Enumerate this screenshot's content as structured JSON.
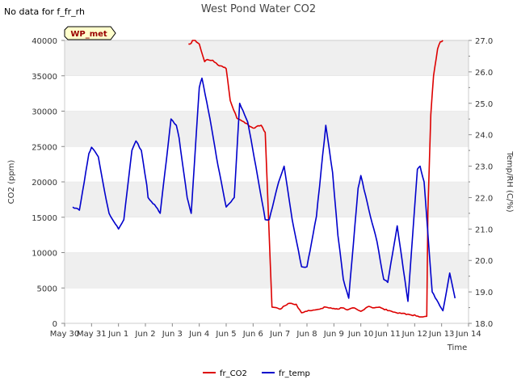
{
  "page": {
    "title": "West Pond Water CO2",
    "no_data_note": "No data for f_fr_rh",
    "site_badge": "WP_met"
  },
  "chart_data": {
    "type": "line",
    "title": "West Pond Water CO2",
    "xlabel": "Time",
    "ylabel": "CO2 (ppm)",
    "y2label": "Temp/RH (C/%)",
    "x_ticks": [
      "May 30",
      "May 31",
      "Jun 1",
      "Jun 2",
      "Jun 3",
      "Jun 4",
      "Jun 5",
      "Jun 6",
      "Jun 7",
      "Jun 8",
      "Jun 9",
      "Jun 10",
      "Jun 11",
      "Jun 12",
      "Jun 13",
      "Jun 14"
    ],
    "xlim_days": [
      0,
      15
    ],
    "ylim": [
      0,
      40000
    ],
    "y_ticks": [
      0,
      5000,
      10000,
      15000,
      20000,
      25000,
      30000,
      35000,
      40000
    ],
    "y2lim": [
      18.0,
      27.0
    ],
    "y2_ticks": [
      18.0,
      19.0,
      20.0,
      21.0,
      22.0,
      23.0,
      24.0,
      25.0,
      26.0,
      27.0
    ],
    "legend_position": "bottom-center",
    "grid": "horizontal bands",
    "colors": {
      "fr_CO2": "#dd0000",
      "fr_temp": "#0000cc",
      "band": "#efefef",
      "axis": "#cccccc",
      "badge_bg": "#ffffcc",
      "badge_text": "#990000"
    },
    "series": [
      {
        "name": "fr_CO2",
        "axis": "left",
        "x": [
          4.6,
          4.7,
          4.75,
          4.85,
          5.0,
          5.2,
          5.3,
          5.5,
          5.75,
          5.9,
          6.0,
          6.15,
          6.4,
          6.65,
          7.0,
          7.3,
          7.45,
          7.7,
          8.0,
          8.3,
          8.6,
          8.8,
          9.0,
          9.1,
          9.3,
          9.7,
          10.0,
          10.15,
          10.3,
          10.5,
          10.7,
          11.0,
          11.3,
          11.5,
          11.7,
          12.0,
          12.2,
          12.5,
          12.75,
          13.3,
          13.45,
          13.49,
          13.6,
          13.7,
          13.85,
          13.95,
          14.05
        ],
        "values": [
          39500,
          39600,
          40000,
          40100,
          39500,
          37000,
          37300,
          37200,
          36400,
          36200,
          36000,
          31500,
          29000,
          28500,
          27600,
          28000,
          27000,
          2300,
          2000,
          2800,
          2700,
          1500,
          1700,
          1800,
          1900,
          2300,
          2100,
          2000,
          2200,
          1900,
          2200,
          1700,
          2400,
          2200,
          2300,
          1800,
          1600,
          1400,
          1300,
          900,
          1000,
          15800,
          29500,
          35000,
          38800,
          39800,
          40000
        ]
      },
      {
        "name": "fr_temp",
        "axis": "right",
        "x": [
          0.3,
          0.55,
          0.9,
          1.0,
          1.25,
          1.55,
          1.65,
          2.0,
          2.2,
          2.5,
          2.65,
          2.85,
          3.05,
          3.1,
          3.4,
          3.55,
          3.95,
          4.15,
          4.25,
          4.55,
          4.7,
          5.0,
          5.1,
          5.4,
          5.7,
          6.0,
          6.3,
          6.5,
          6.8,
          7.1,
          7.45,
          7.6,
          7.95,
          8.15,
          8.45,
          8.8,
          9.0,
          9.35,
          9.7,
          9.95,
          10.15,
          10.35,
          10.55,
          10.9,
          11.0,
          11.3,
          11.6,
          11.85,
          12.0,
          12.35,
          12.75,
          13.1,
          13.2,
          13.35,
          13.65,
          14.05,
          14.3,
          14.5
        ],
        "values": [
          21.7,
          21.6,
          23.4,
          23.6,
          23.3,
          21.9,
          21.5,
          21.0,
          21.3,
          23.5,
          23.8,
          23.5,
          22.4,
          22.0,
          21.7,
          21.5,
          24.5,
          24.3,
          23.9,
          22.0,
          21.5,
          25.5,
          25.8,
          24.5,
          23.0,
          21.7,
          22.0,
          25.0,
          24.4,
          23.0,
          21.3,
          21.3,
          22.5,
          23.0,
          21.3,
          19.8,
          19.8,
          21.4,
          24.3,
          22.8,
          20.8,
          19.4,
          18.8,
          22.3,
          22.7,
          21.6,
          20.6,
          19.4,
          19.3,
          21.1,
          18.7,
          22.9,
          23.0,
          22.5,
          19.0,
          18.4,
          19.6,
          18.8
        ]
      }
    ]
  }
}
